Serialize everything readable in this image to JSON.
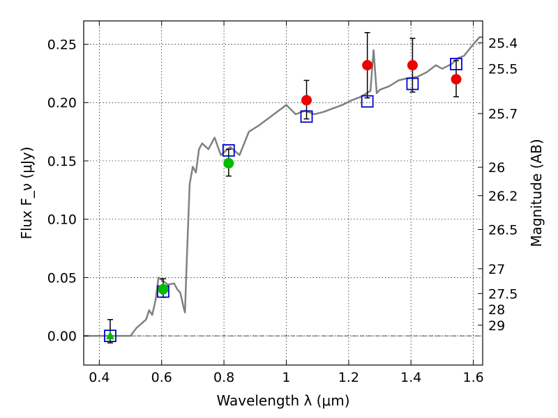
{
  "chart_data": {
    "type": "scatter",
    "title": "",
    "xlabel": "Wavelength λ (μm)",
    "ylabel": "Flux F_ν (μJy)",
    "ylabel_right": "Magnitude (AB)",
    "xlim": [
      0.35,
      1.63
    ],
    "ylim": [
      -0.025,
      0.27
    ],
    "x_ticks": [
      0.4,
      0.6,
      0.8,
      1.0,
      1.2,
      1.4,
      1.6
    ],
    "x_tick_labels": [
      "0.4",
      "0.6",
      "0.8",
      "1",
      "1.2",
      "1.4",
      "1.6"
    ],
    "y_ticks": [
      0.0,
      0.05,
      0.1,
      0.15,
      0.2,
      0.25
    ],
    "y_tick_labels": [
      "0.00",
      "0.05",
      "0.10",
      "0.15",
      "0.20",
      "0.25"
    ],
    "magnitude_ticks": [
      "25.4",
      "25.5",
      "25.7",
      "26",
      "26.2",
      "26.5",
      "27",
      "27.5",
      "28",
      "29"
    ],
    "grid": true,
    "reference_line_y": 0.0,
    "series": [
      {
        "marker": "line",
        "color": "#808080",
        "x": [
          0.35,
          0.5,
          0.52,
          0.55,
          0.56,
          0.57,
          0.58,
          0.59,
          0.6,
          0.62,
          0.64,
          0.65,
          0.66,
          0.67,
          0.675,
          0.68,
          0.69,
          0.7,
          0.71,
          0.72,
          0.73,
          0.75,
          0.77,
          0.79,
          0.82,
          0.85,
          0.88,
          0.91,
          0.94,
          0.97,
          1.0,
          1.03,
          1.06,
          1.09,
          1.12,
          1.15,
          1.18,
          1.21,
          1.24,
          1.27,
          1.28,
          1.29,
          1.3,
          1.33,
          1.36,
          1.39,
          1.42,
          1.45,
          1.48,
          1.5,
          1.53,
          1.55,
          1.57,
          1.6,
          1.62,
          1.63
        ],
        "y": [
          0.0,
          0.0,
          0.007,
          0.014,
          0.022,
          0.018,
          0.03,
          0.05,
          0.048,
          0.044,
          0.045,
          0.04,
          0.037,
          0.025,
          0.02,
          0.06,
          0.13,
          0.145,
          0.14,
          0.16,
          0.165,
          0.16,
          0.17,
          0.155,
          0.162,
          0.155,
          0.175,
          0.18,
          0.186,
          0.192,
          0.198,
          0.19,
          0.193,
          0.19,
          0.192,
          0.195,
          0.198,
          0.202,
          0.205,
          0.21,
          0.245,
          0.208,
          0.211,
          0.214,
          0.219,
          0.221,
          0.222,
          0.226,
          0.232,
          0.229,
          0.233,
          0.238,
          0.24,
          0.25,
          0.256,
          0.256
        ]
      },
      {
        "marker": "open-square",
        "color": "#0000cc",
        "x": [
          0.435,
          0.605,
          0.815,
          1.065,
          1.26,
          1.405,
          1.545
        ],
        "y": [
          0.0,
          0.038,
          0.159,
          0.188,
          0.201,
          0.216,
          0.233
        ]
      },
      {
        "marker": "circle",
        "color": "#00bb00",
        "x": [
          0.605,
          0.815
        ],
        "y": [
          0.04,
          0.148
        ]
      },
      {
        "marker": "circle",
        "color": "#ee0000",
        "x": [
          1.065,
          1.26,
          1.405,
          1.545
        ],
        "y": [
          0.202,
          0.232,
          0.232,
          0.22
        ]
      },
      {
        "marker": "triangle",
        "color": "#00bb00",
        "x": [
          0.435
        ],
        "y": [
          0.0
        ]
      },
      {
        "marker": "errorbar",
        "color": "#000000",
        "x": [
          0.435,
          0.605,
          0.815,
          1.065,
          1.26,
          1.405,
          1.545
        ],
        "y_low": [
          -0.006,
          0.033,
          0.137,
          0.186,
          0.204,
          0.209,
          0.205
        ],
        "y_high": [
          0.014,
          0.049,
          0.16,
          0.219,
          0.26,
          0.255,
          0.236
        ]
      }
    ]
  }
}
